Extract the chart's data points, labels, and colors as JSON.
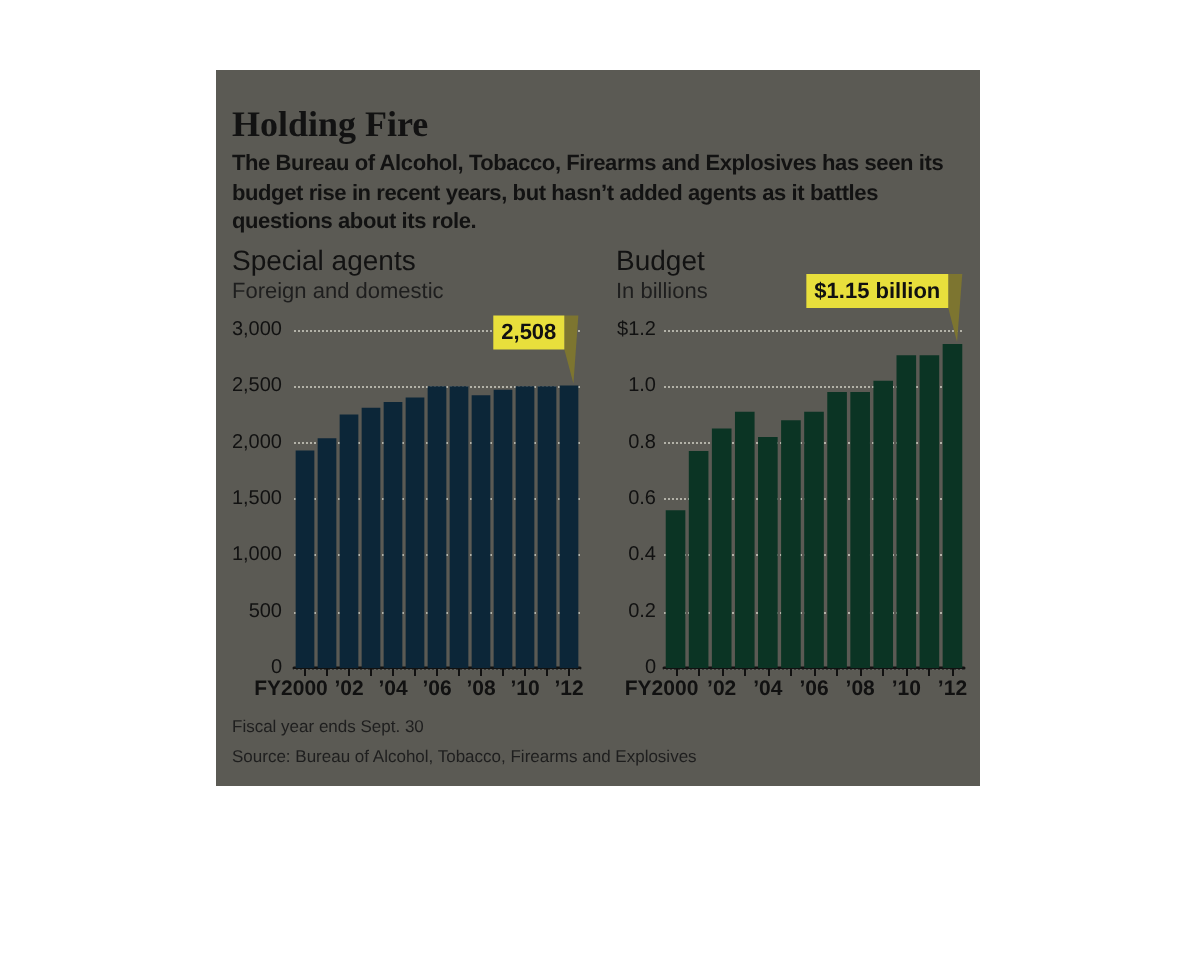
{
  "chart_data": [
    {
      "type": "bar",
      "title": "Special agents",
      "subtitle": "Foreign and domestic",
      "categories": [
        "FY2000",
        null,
        "’02",
        null,
        "’04",
        null,
        "’06",
        null,
        "’08",
        null,
        "’10",
        null,
        "’12"
      ],
      "values": [
        1930,
        2040,
        2250,
        2310,
        2360,
        2400,
        2500,
        2500,
        2420,
        2470,
        2500,
        2500,
        2508
      ],
      "color": "#0c2638",
      "ylim": [
        0,
        3000
      ],
      "yticks": [
        0,
        500,
        {
          "value": 1000,
          "label": "1,000"
        },
        {
          "value": 1500,
          "label": "1,500"
        },
        {
          "value": 2000,
          "label": "2,000"
        },
        {
          "value": 2500,
          "label": "2,500"
        },
        {
          "value": 3000,
          "label": "3,000"
        }
      ],
      "grid": "y",
      "annotations": [
        "Holding Fire",
        "The Bureau of Alcohol, Tobacco, Firearms and Explosives has seen its budget rise in recent years, but hasn’t added agents as it battles questions about its role.",
        "Fiscal year ends Sept. 30",
        "Source: Bureau of Alcohol, Tobacco, Firearms and Explosives",
        {
          "text": "2,508",
          "x": "’12",
          "y": 2508
        }
      ]
    },
    {
      "type": "bar",
      "title": "Budget",
      "subtitle": "In billions",
      "categories": [
        "FY2000",
        null,
        "’02",
        null,
        "’04",
        null,
        "’06",
        null,
        "’08",
        null,
        "’10",
        null,
        "’12"
      ],
      "values": [
        0.56,
        0.77,
        0.85,
        0.91,
        0.82,
        0.88,
        0.91,
        0.98,
        0.98,
        1.02,
        1.11,
        1.11,
        1.15
      ],
      "color": "#0b3424",
      "ylim": [
        0,
        1.2
      ],
      "yticks": [
        0,
        0.2,
        0.4,
        0.6,
        0.8,
        {
          "value": 1,
          "label": "1.0"
        },
        {
          "value": 1.2,
          "label": "$1.2"
        }
      ],
      "grid": "y",
      "annotations": [
        {
          "text": "$1.15 billion",
          "x": "’12",
          "y": 1.15
        }
      ]
    }
  ]
}
